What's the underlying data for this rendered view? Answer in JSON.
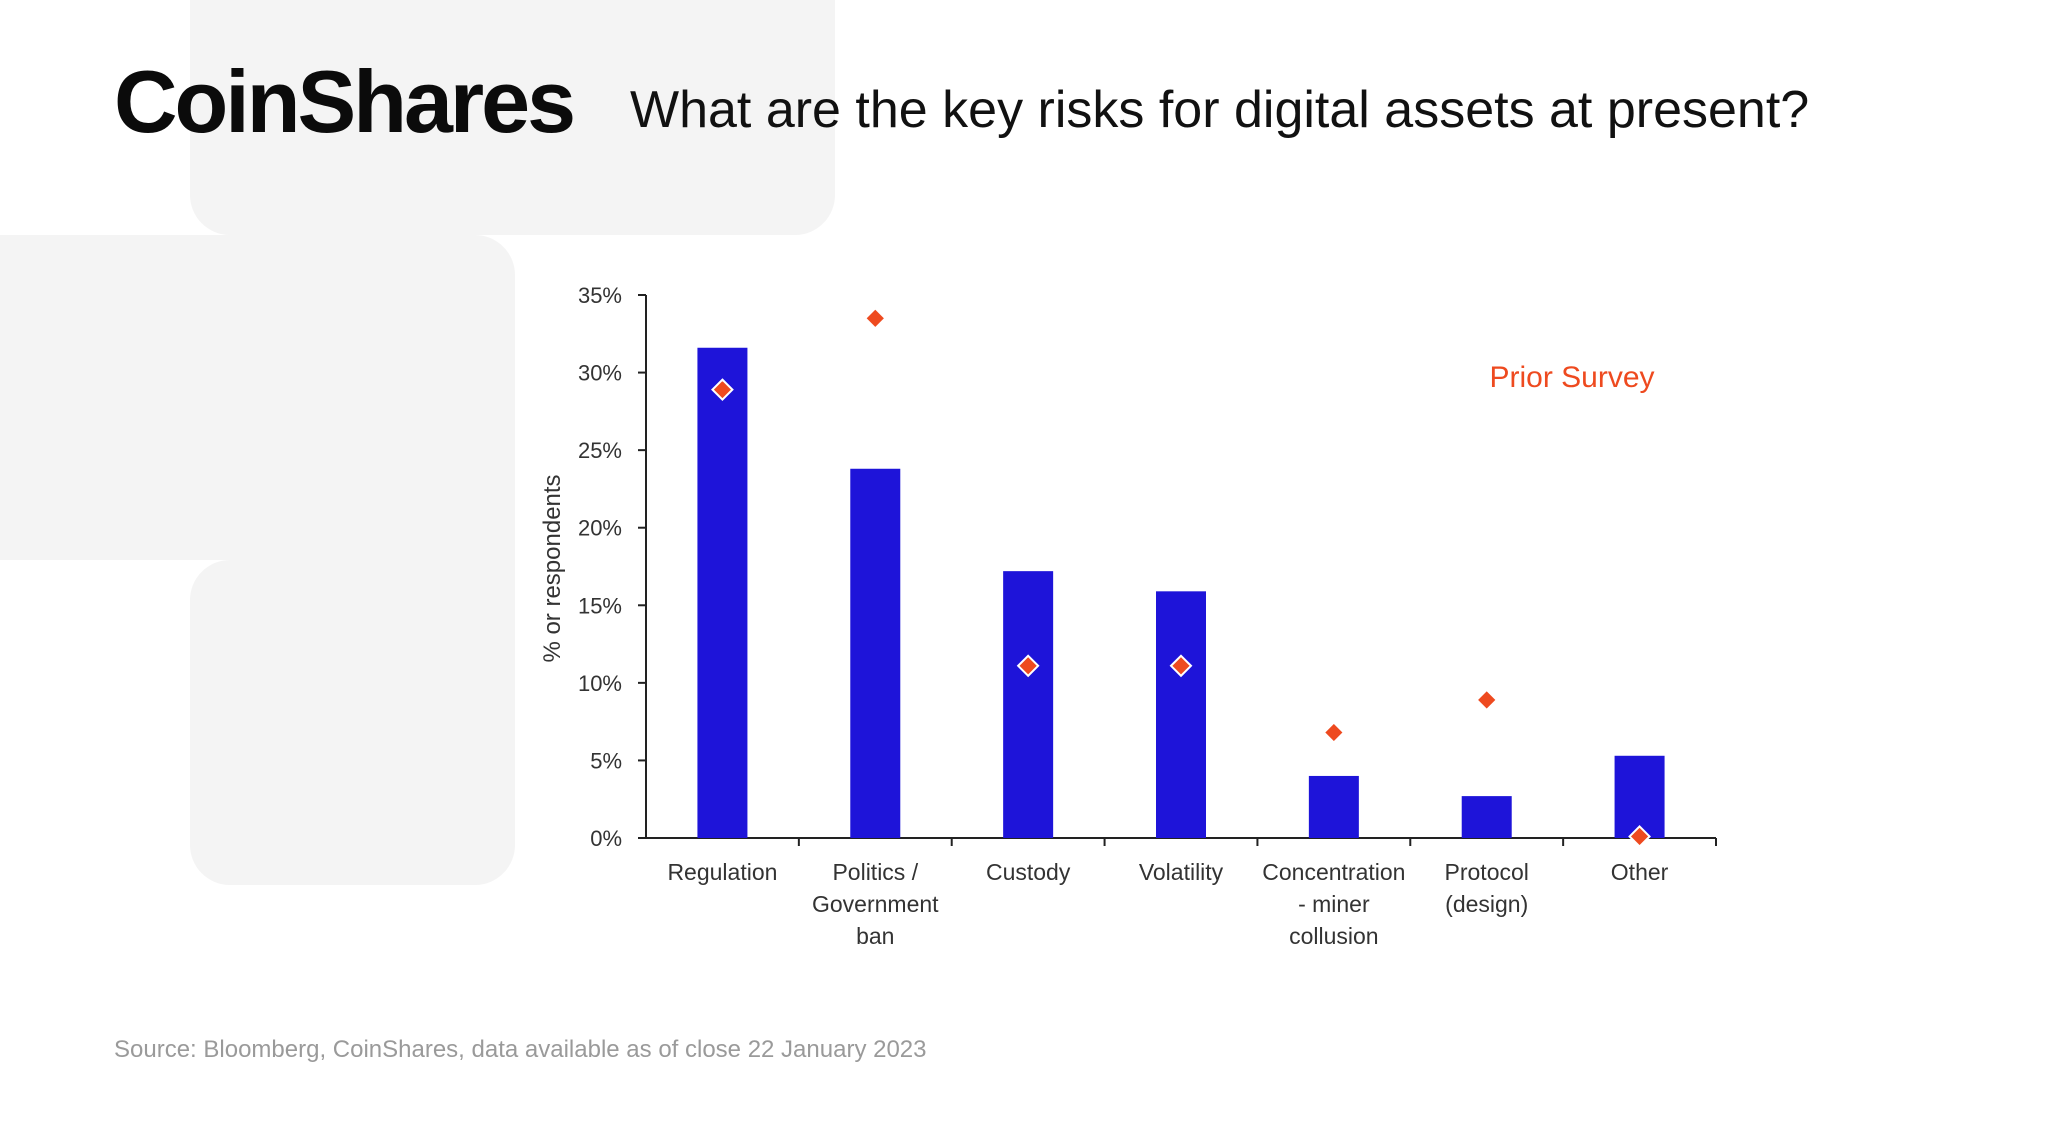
{
  "brand": {
    "logo_text": "CoinShares"
  },
  "header": {
    "title": "What are the key risks for digital assets at present?"
  },
  "footer": {
    "source": "Source: Bloomberg, CoinShares, data available as of close 22 January 2023"
  },
  "colors": {
    "bar": "#1e14d9",
    "marker": "#ee4a1f",
    "axis": "#222222",
    "background_shape": "#f4f4f4"
  },
  "chart_data": {
    "type": "bar",
    "ylabel": "% or respondents",
    "ylim": [
      0,
      35
    ],
    "yticks": [
      0,
      5,
      10,
      15,
      20,
      25,
      30,
      35
    ],
    "ytick_labels": [
      "0%",
      "5%",
      "10%",
      "15%",
      "20%",
      "25%",
      "30%",
      "35%"
    ],
    "categories": [
      [
        "Regulation"
      ],
      [
        "Politics /",
        "Government",
        "ban"
      ],
      [
        "Custody"
      ],
      [
        "Volatility"
      ],
      [
        "Concentration",
        "- miner",
        "collusion"
      ],
      [
        "Protocol",
        "(design)"
      ],
      [
        "Other"
      ]
    ],
    "series": [
      {
        "values": [
          31.6,
          23.8,
          17.2,
          15.9,
          4.0,
          2.7,
          5.3
        ]
      },
      {
        "name": "Prior Survey",
        "type": "scatter",
        "marker": "diamond",
        "values": [
          28.9,
          33.5,
          11.1,
          11.1,
          6.8,
          8.9,
          0.1
        ]
      }
    ],
    "legend": {
      "placement": "top-right"
    },
    "grid": false
  }
}
